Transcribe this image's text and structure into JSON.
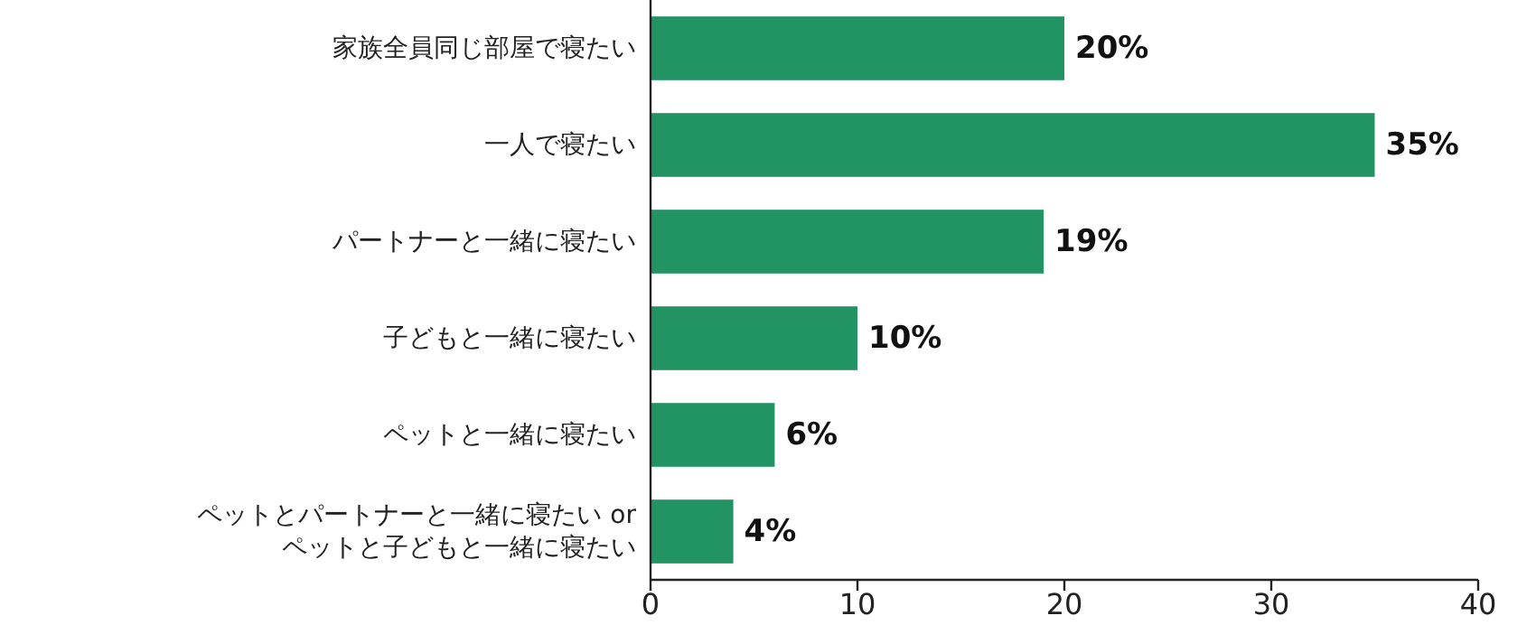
{
  "chart_data": {
    "type": "bar",
    "orientation": "horizontal",
    "categories": [
      "家族全員同じ部屋で寝たい",
      "一人で寝たい",
      "パートナーと一緒に寝たい",
      "子どもと一緒に寝たい",
      "ペットと一緒に寝たい",
      "ペットとパートナーと一緒に寝たい or\nペットと子どもと一緒に寝たい"
    ],
    "values": [
      20,
      35,
      19,
      10,
      6,
      4
    ],
    "value_labels": [
      "20%",
      "35%",
      "19%",
      "10%",
      "6%",
      "4%"
    ],
    "color": "#229463",
    "xlim": [
      0,
      40
    ],
    "xticks": [
      0,
      10,
      20,
      30,
      40
    ]
  }
}
